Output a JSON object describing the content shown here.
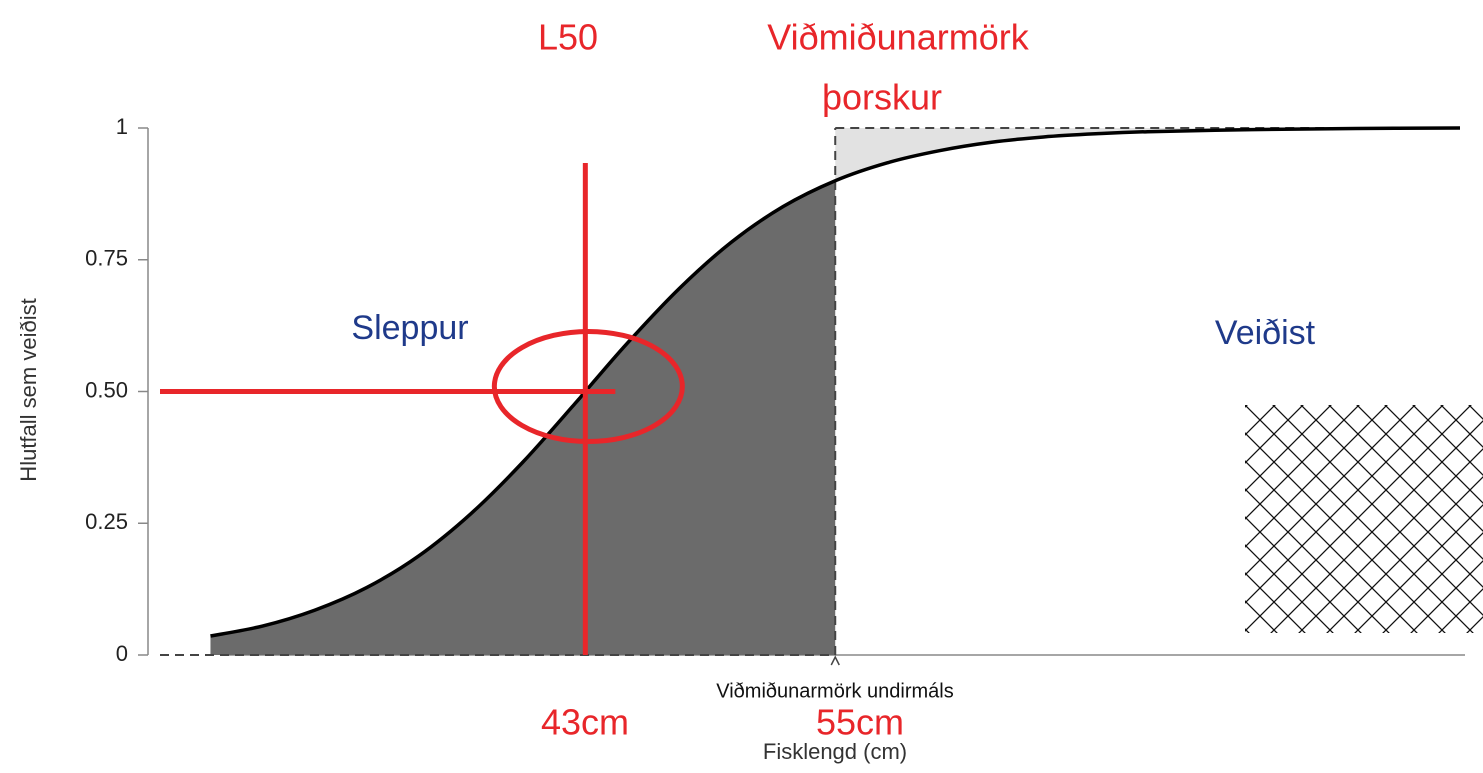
{
  "chart_data": {
    "type": "line",
    "title": [
      "Viðmiðunarmörk",
      "þorskur"
    ],
    "x_label": "Fisklengd (cm)",
    "y_label": "Hlutfall sem veiðist",
    "x": [
      25,
      27.5,
      30,
      32.5,
      35,
      37.5,
      40,
      42.5,
      43,
      45,
      47.5,
      50,
      52.5,
      55,
      57.5,
      60,
      62.5,
      65,
      67.5,
      70,
      75,
      80,
      85
    ],
    "series": [
      {
        "color": "#000000",
        "values": [
          0.036,
          0.055,
          0.085,
          0.128,
          0.188,
          0.268,
          0.366,
          0.477,
          0.5,
          0.591,
          0.695,
          0.783,
          0.851,
          0.9,
          0.934,
          0.957,
          0.973,
          0.983,
          0.989,
          0.993,
          0.997,
          0.999,
          1
        ]
      }
    ],
    "xlim": [
      22,
      85
    ],
    "ylim": [
      0,
      1
    ],
    "yticks": [
      0,
      0.25,
      {
        "value": 0.5,
        "label": "0.50"
      },
      0.75,
      1
    ],
    "l50": {
      "label": "L50",
      "x": 43,
      "y": 0.5,
      "x_label": "43cm",
      "color": "#e8262a"
    },
    "size_limit": {
      "label": "Viðmiðunarmörk undirmáls",
      "x": 55,
      "x_label": "55cm"
    },
    "regions": [
      {
        "label": "Sleppur",
        "color": "#1f3a8a"
      },
      {
        "label": "Veiðist",
        "color": "#1f3a8a"
      }
    ],
    "fill_released": "#6b6b6b",
    "fill_caught": "#e2e2e2"
  }
}
